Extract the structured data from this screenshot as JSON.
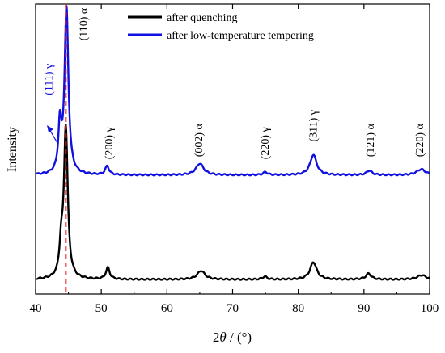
{
  "chart_data": {
    "type": "line",
    "title": "",
    "xlabel_prefix": "2",
    "xlabel_theta": "θ",
    "xlabel_unit": " / (°)",
    "ylabel": "Intensity",
    "xlim": [
      40,
      100
    ],
    "xticks": [
      "40",
      "50",
      "60",
      "70",
      "80",
      "90",
      "100"
    ],
    "yticks_shown": false,
    "legend_position": "top-center",
    "reference_line": {
      "x": 44.6,
      "color": "#e02020",
      "style": "dashed"
    },
    "series": [
      {
        "name": "after quenching",
        "color": "#000000",
        "baseline": 0.05,
        "peaks": [
          {
            "x": 44.6,
            "height": 0.52,
            "width": 0.35
          },
          {
            "x": 43.9,
            "height": 0.1,
            "width": 0.3
          },
          {
            "x": 51.0,
            "height": 0.04,
            "width": 0.35
          },
          {
            "x": 65.2,
            "height": 0.03,
            "width": 0.7
          },
          {
            "x": 74.9,
            "height": 0.01,
            "width": 0.4
          },
          {
            "x": 82.3,
            "height": 0.06,
            "width": 0.6
          },
          {
            "x": 90.7,
            "height": 0.02,
            "width": 0.5
          },
          {
            "x": 98.8,
            "height": 0.015,
            "width": 0.8
          }
        ]
      },
      {
        "name": "after low-temperature tempering",
        "color": "#1010e0",
        "baseline": 0.41,
        "peaks": [
          {
            "x": 44.7,
            "height": 0.57,
            "width": 0.35
          },
          {
            "x": 43.7,
            "height": 0.16,
            "width": 0.28
          },
          {
            "x": 50.9,
            "height": 0.03,
            "width": 0.35
          },
          {
            "x": 65.0,
            "height": 0.04,
            "width": 0.7
          },
          {
            "x": 75.0,
            "height": 0.01,
            "width": 0.4
          },
          {
            "x": 82.3,
            "height": 0.07,
            "width": 0.6
          },
          {
            "x": 90.8,
            "height": 0.015,
            "width": 0.5
          },
          {
            "x": 98.7,
            "height": 0.02,
            "width": 0.8
          }
        ]
      }
    ],
    "annotations": [
      {
        "text": "(110) α",
        "x": 47.8,
        "y": 0.93,
        "color": "#000000"
      },
      {
        "text": "(111) γ",
        "x": 42.5,
        "y": 0.74,
        "color": "#1010e0"
      },
      {
        "text": "(200) γ",
        "x": 51.7,
        "y": 0.52,
        "color": "#000000"
      },
      {
        "text": "(002) α",
        "x": 65.4,
        "y": 0.53,
        "color": "#000000"
      },
      {
        "text": "(220) γ",
        "x": 75.5,
        "y": 0.52,
        "color": "#000000"
      },
      {
        "text": "(311) γ",
        "x": 82.8,
        "y": 0.58,
        "color": "#000000"
      },
      {
        "text": "(121) α",
        "x": 91.5,
        "y": 0.53,
        "color": "#000000"
      },
      {
        "text": "(220) α",
        "x": 99.0,
        "y": 0.53,
        "color": "#000000"
      }
    ]
  }
}
